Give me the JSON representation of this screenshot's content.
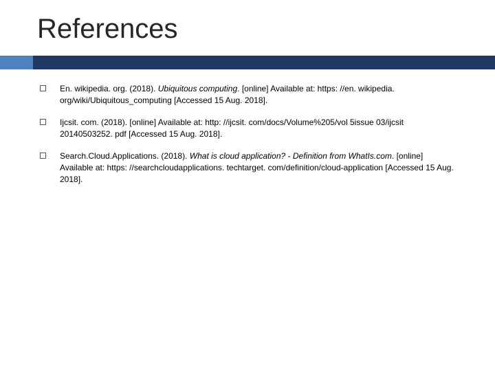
{
  "title": "References",
  "colors": {
    "accent": "#4f81bd",
    "bar": "#1f3864",
    "text": "#000000",
    "title": "#262626",
    "background": "#ffffff"
  },
  "references": [
    {
      "prefix": "En. wikipedia. org. (2018). ",
      "italic": "Ubiquitous computing",
      "suffix": ". [online] Available at: https: //en. wikipedia. org/wiki/Ubiquitous_computing [Accessed 15 Aug. 2018]."
    },
    {
      "prefix": "Ijcsit. com. (2018). [online] Available at: http: //ijcsit. com/docs/Volume%205/vol 5issue 03/ijcsit 20140503252. pdf [Accessed 15 Aug. 2018].",
      "italic": "",
      "suffix": ""
    },
    {
      "prefix": "Search.Cloud.Applications. (2018). ",
      "italic": "What is cloud application? - Definition from WhatIs.com",
      "suffix": ". [online] Available at: https: //searchcloudapplications. techtarget. com/definition/cloud-application [Accessed 15 Aug. 2018]."
    }
  ]
}
